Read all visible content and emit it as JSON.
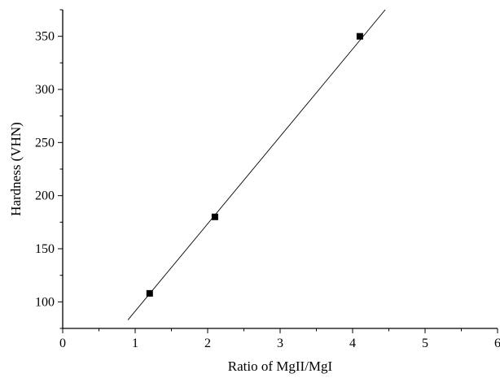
{
  "chart_data": {
    "type": "scatter",
    "title": "",
    "xlabel": "Ratio of MgII/MgI",
    "ylabel": "Hardness (VHN)",
    "xlim": [
      0,
      6
    ],
    "ylim": [
      75,
      375
    ],
    "x_ticks": [
      0,
      1,
      2,
      3,
      4,
      5,
      6
    ],
    "x_tick_labels": [
      "0",
      "1",
      "2",
      "3",
      "4",
      "5",
      "6"
    ],
    "y_ticks": [
      100,
      150,
      200,
      250,
      300,
      350
    ],
    "y_tick_labels": [
      "100",
      "150",
      "200",
      "250",
      "300",
      "350"
    ],
    "grid": false,
    "series": [
      {
        "type": "scatter",
        "marker": "square",
        "color": "#000000",
        "points": [
          {
            "x": 1.2,
            "y": 108
          },
          {
            "x": 2.1,
            "y": 180
          },
          {
            "x": 4.1,
            "y": 350
          }
        ]
      },
      {
        "type": "line",
        "color": "#000000",
        "points": [
          {
            "x": 0.9,
            "y": 83
          },
          {
            "x": 4.45,
            "y": 375
          }
        ]
      }
    ]
  }
}
